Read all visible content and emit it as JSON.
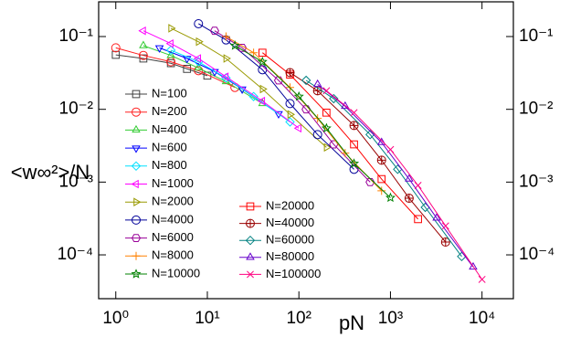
{
  "chart_data": {
    "type": "line",
    "log_x": true,
    "log_y": true,
    "x_label": "pN",
    "y_label": "<w∞²>/N",
    "xlim": [
      0.65,
      22000
    ],
    "ylim": [
      2.5e-05,
      0.3
    ],
    "xticks": [
      {
        "value": 1,
        "label": "10⁰"
      },
      {
        "value": 10,
        "label": "10¹"
      },
      {
        "value": 100,
        "label": "10²"
      },
      {
        "value": 1000,
        "label": "10³"
      },
      {
        "value": 10000,
        "label": "10⁴"
      }
    ],
    "yticks": [
      {
        "value": 0.0001,
        "label": "10⁻⁴"
      },
      {
        "value": 0.001,
        "label": "10⁻³"
      },
      {
        "value": 0.01,
        "label": "10⁻²"
      },
      {
        "value": 0.1,
        "label": "10⁻¹"
      }
    ],
    "series": [
      {
        "name": "N=100",
        "color": "#404040",
        "marker": "square",
        "x": [
          1,
          2,
          4,
          6,
          10
        ],
        "values": [
          0.056,
          0.05,
          0.043,
          0.036,
          0.029
        ]
      },
      {
        "name": "N=200",
        "color": "#ff2020",
        "marker": "circle",
        "x": [
          1,
          2,
          4,
          8,
          20
        ],
        "values": [
          0.07,
          0.055,
          0.045,
          0.034,
          0.02
        ]
      },
      {
        "name": "N=400",
        "color": "#33cc33",
        "marker": "tri-up",
        "x": [
          2,
          4,
          8,
          16,
          40
        ],
        "values": [
          0.075,
          0.055,
          0.037,
          0.024,
          0.012
        ]
      },
      {
        "name": "N=600",
        "color": "#0000ff",
        "marker": "tri-down",
        "x": [
          3,
          6,
          12,
          24,
          60
        ],
        "values": [
          0.07,
          0.05,
          0.033,
          0.019,
          0.0087
        ]
      },
      {
        "name": "N=800",
        "color": "#00e0ff",
        "marker": "diamond",
        "x": [
          4,
          8,
          16,
          32,
          80
        ],
        "values": [
          0.065,
          0.045,
          0.027,
          0.015,
          0.0067
        ]
      },
      {
        "name": "N=1000",
        "color": "#ff00ff",
        "marker": "tri-left",
        "x": [
          2,
          4,
          8,
          16,
          40,
          100
        ],
        "values": [
          0.12,
          0.08,
          0.05,
          0.028,
          0.013,
          0.0055
        ]
      },
      {
        "name": "N=2000",
        "color": "#999900",
        "marker": "tri-right",
        "x": [
          4,
          8,
          16,
          40,
          80,
          200
        ],
        "values": [
          0.13,
          0.085,
          0.05,
          0.019,
          0.0085,
          0.003
        ]
      },
      {
        "name": "N=4000",
        "color": "#000099",
        "marker": "circle",
        "x": [
          8,
          16,
          40,
          80,
          160,
          400
        ],
        "values": [
          0.15,
          0.09,
          0.035,
          0.012,
          0.0045,
          0.0015
        ]
      },
      {
        "name": "N=6000",
        "color": "#990099",
        "marker": "hexagon",
        "x": [
          12,
          24,
          60,
          120,
          240,
          600
        ],
        "values": [
          0.12,
          0.07,
          0.025,
          0.01,
          0.0033,
          0.001
        ]
      },
      {
        "name": "N=8000",
        "color": "#ff8000",
        "marker": "plus",
        "x": [
          16,
          32,
          80,
          160,
          320,
          800
        ],
        "values": [
          0.1,
          0.06,
          0.02,
          0.0075,
          0.0025,
          0.00076
        ]
      },
      {
        "name": "N=10000",
        "color": "#008000",
        "marker": "star",
        "x": [
          20,
          40,
          100,
          200,
          400,
          1000
        ],
        "values": [
          0.075,
          0.045,
          0.015,
          0.0055,
          0.0018,
          0.00061
        ]
      },
      {
        "name": "N=20000",
        "color": "#ff0000",
        "marker": "square",
        "x": [
          40,
          80,
          200,
          400,
          800,
          2000
        ],
        "values": [
          0.06,
          0.03,
          0.009,
          0.0033,
          0.0011,
          0.00031
        ]
      },
      {
        "name": "N=40000",
        "color": "#990000",
        "marker": "circle-plus",
        "x": [
          80,
          160,
          400,
          800,
          1600,
          4000
        ],
        "values": [
          0.032,
          0.018,
          0.006,
          0.002,
          0.0006,
          0.00015
        ]
      },
      {
        "name": "N=60000",
        "color": "#008080",
        "marker": "diamond",
        "x": [
          120,
          240,
          600,
          1200,
          2400,
          6000
        ],
        "values": [
          0.025,
          0.014,
          0.0045,
          0.0015,
          0.00045,
          9.5e-05
        ]
      },
      {
        "name": "N=80000",
        "color": "#6600cc",
        "marker": "tri-up",
        "x": [
          160,
          320,
          800,
          1600,
          3200,
          8000
        ],
        "values": [
          0.022,
          0.011,
          0.0035,
          0.0011,
          0.00032,
          6.8e-05
        ]
      },
      {
        "name": "N=100000",
        "color": "#ff0080",
        "marker": "cross",
        "x": [
          200,
          400,
          1000,
          2000,
          4000,
          10000
        ],
        "values": [
          0.018,
          0.009,
          0.0028,
          0.0009,
          0.00025,
          4.6e-05
        ]
      }
    ]
  }
}
